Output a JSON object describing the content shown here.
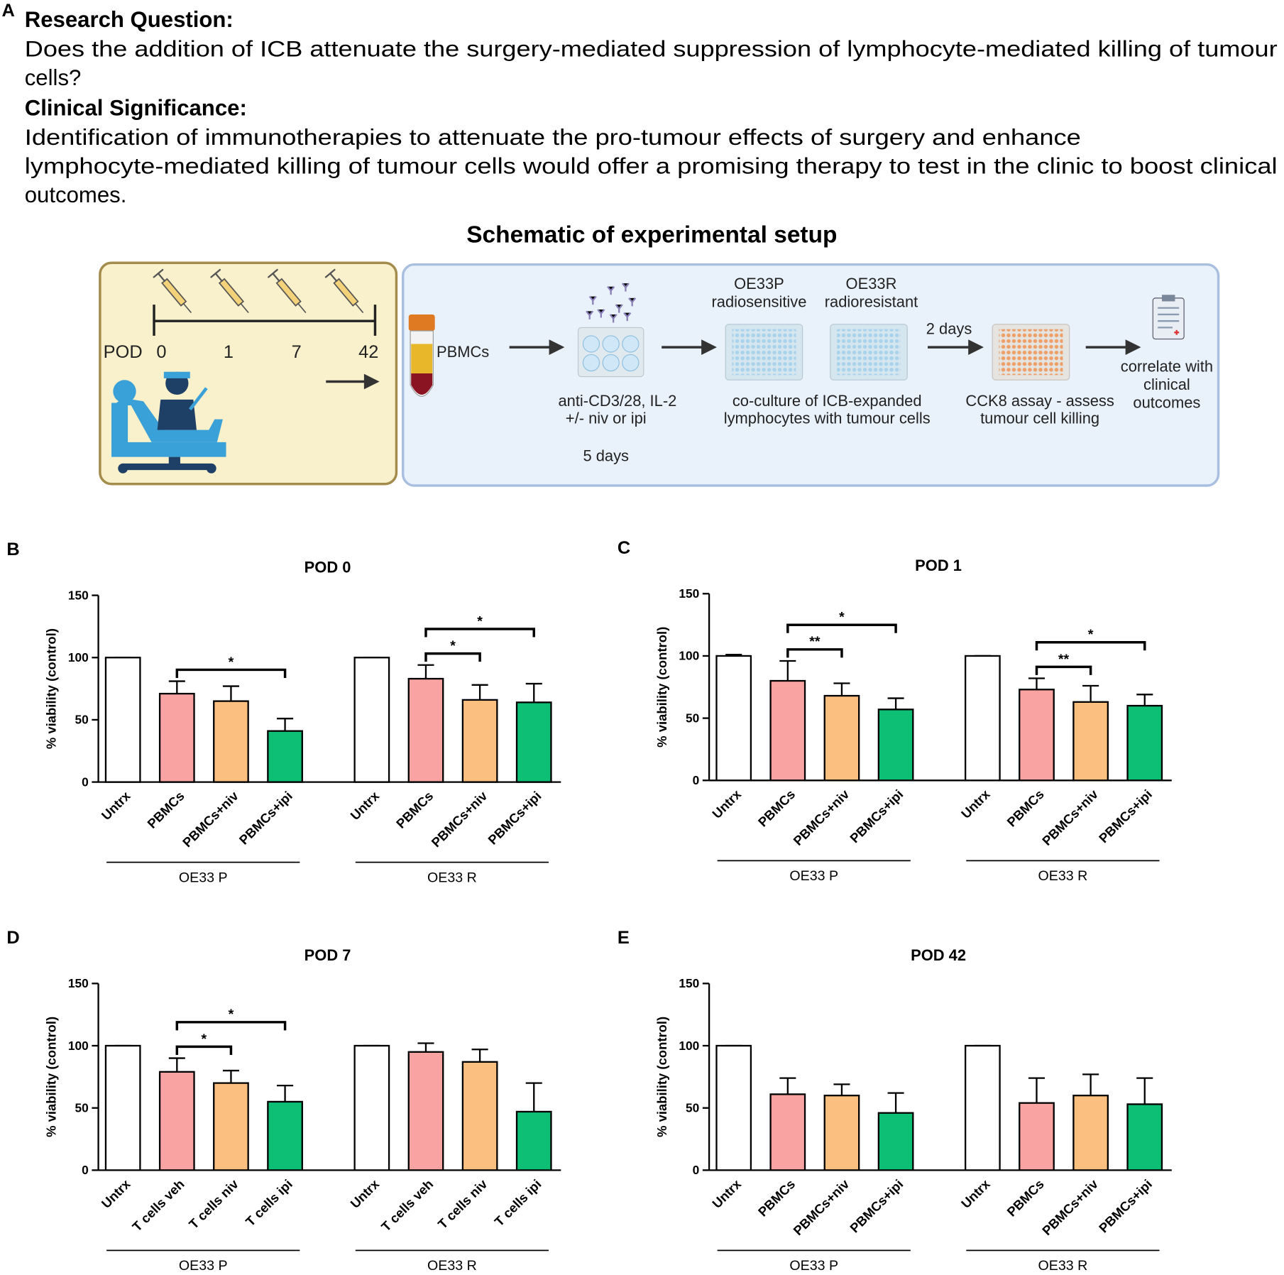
{
  "panel_a": {
    "label": "A",
    "research_question_heading": "Research Question:",
    "research_question": [
      "Does the addition of ICB attenuate the surgery-mediated suppression of lymphocyte-mediated killing of tumour",
      "cells?"
    ],
    "clinical_significance_heading": "Clinical Significance:",
    "clinical_significance": [
      "Identification of immunotherapies to attenuate the pro-tumour effects of surgery and enhance",
      "lymphocyte-mediated killing of tumour cells would offer a promising therapy to test in the clinic to boost clinical",
      "outcomes."
    ],
    "schematic": {
      "title": "Schematic of experimental setup",
      "timeline_label": "POD",
      "timeline_days": [
        "0",
        "1",
        "7",
        "42"
      ],
      "pbmcs": "PBMCs",
      "expansion": [
        "anti-CD3/28, IL-2",
        "+/- niv or ipi"
      ],
      "expansion_time": "5 days",
      "cell_line_1": [
        "OE33P",
        "radiosensitive"
      ],
      "cell_line_2": [
        "OE33R",
        "radioresistant"
      ],
      "coculture": [
        "co-culture of ICB-expanded",
        "lymphocytes with tumour cells"
      ],
      "coculture_time": "2 days",
      "assay": [
        "CCK8 assay - assess",
        "tumour cell killing"
      ],
      "outcome": [
        "correlate with",
        "clinical",
        "outcomes"
      ]
    }
  },
  "chart_data": [
    {
      "type": "bar",
      "panel": "B",
      "title": "POD 0",
      "y_label": "% viability (control)",
      "categories": [
        "Untrx",
        "PBMCs",
        "PBMCs+niv",
        "PBMCs+ipi",
        "Untrx",
        "PBMCs",
        "PBMCs+niv",
        "PBMCs+ipi"
      ],
      "groups": [
        "OE33 P",
        "OE33 R"
      ],
      "values": [
        100,
        71,
        65,
        41,
        100,
        83,
        66,
        64
      ],
      "errors": [
        0,
        10,
        12,
        10,
        0,
        11,
        12,
        15
      ],
      "colors": [
        "#ffffff",
        "#f9a3a3",
        "#fbbf80",
        "#0dbf74"
      ],
      "ylim": [
        0,
        150
      ],
      "yticks": [
        0,
        50,
        100,
        150
      ],
      "annotations": [
        {
          "label": "*",
          "from": 1,
          "to": 3
        },
        {
          "label": "*",
          "from": 5,
          "to": 6
        },
        {
          "label": "*",
          "from": 5,
          "to": 7
        }
      ]
    },
    {
      "type": "bar",
      "panel": "C",
      "title": "POD 1",
      "y_label": "% viability (control)",
      "categories": [
        "Untrx",
        "PBMCs",
        "PBMCs+niv",
        "PBMCs+ipi",
        "Untrx",
        "PBMCs",
        "PBMCs+niv",
        "PBMCs+ipi"
      ],
      "groups": [
        "OE33 P",
        "OE33 R"
      ],
      "values": [
        100,
        80,
        68,
        57,
        100,
        73,
        63,
        60
      ],
      "errors": [
        1,
        16,
        10,
        9,
        0,
        9,
        13,
        9
      ],
      "colors": [
        "#ffffff",
        "#f9a3a3",
        "#fbbf80",
        "#0dbf74"
      ],
      "ylim": [
        0,
        150
      ],
      "yticks": [
        0,
        50,
        100,
        150
      ],
      "annotations": [
        {
          "label": "**",
          "from": 1,
          "to": 2
        },
        {
          "label": "*",
          "from": 1,
          "to": 3
        },
        {
          "label": "**",
          "from": 5,
          "to": 6
        },
        {
          "label": "*",
          "from": 5,
          "to": 7
        }
      ]
    },
    {
      "type": "bar",
      "panel": "D",
      "title": "POD 7",
      "y_label": "% viability (control)",
      "categories": [
        "Untrx",
        "T cells veh",
        "T cells niv",
        "T cells ipi",
        "Untrx",
        "T cells veh",
        "T cells niv",
        "T cells ipi"
      ],
      "groups": [
        "OE33 P",
        "OE33 R"
      ],
      "values": [
        100,
        79,
        70,
        55,
        100,
        95,
        87,
        47
      ],
      "errors": [
        0,
        11,
        10,
        13,
        0,
        7,
        10,
        23
      ],
      "colors": [
        "#ffffff",
        "#f9a3a3",
        "#fbbf80",
        "#0dbf74"
      ],
      "ylim": [
        0,
        150
      ],
      "yticks": [
        0,
        50,
        100,
        150
      ],
      "annotations": [
        {
          "label": "*",
          "from": 1,
          "to": 2
        },
        {
          "label": "*",
          "from": 1,
          "to": 3
        }
      ]
    },
    {
      "type": "bar",
      "panel": "E",
      "title": "POD 42",
      "y_label": "% viability (control)",
      "categories": [
        "Untrx",
        "PBMCs",
        "PBMCs+niv",
        "PBMCs+ipi",
        "Untrx",
        "PBMCs",
        "PBMCs+niv",
        "PBMCs+ipi"
      ],
      "groups": [
        "OE33 P",
        "OE33 R"
      ],
      "values": [
        100,
        61,
        60,
        46,
        100,
        54,
        60,
        53
      ],
      "errors": [
        0,
        13,
        9,
        16,
        0,
        20,
        17,
        21
      ],
      "colors": [
        "#ffffff",
        "#f9a3a3",
        "#fbbf80",
        "#0dbf74"
      ],
      "ylim": [
        0,
        150
      ],
      "yticks": [
        0,
        50,
        100,
        150
      ],
      "annotations": []
    }
  ]
}
